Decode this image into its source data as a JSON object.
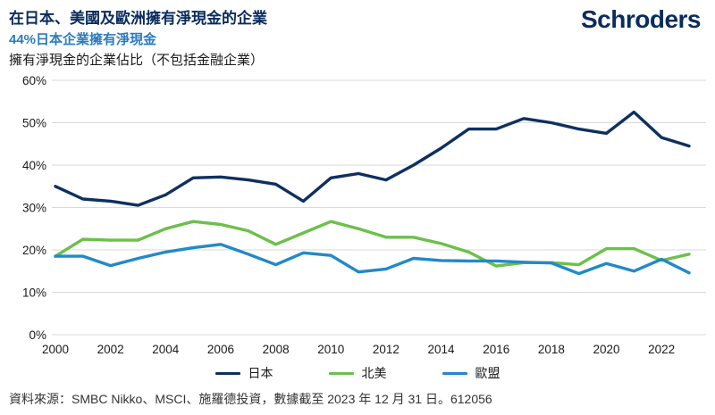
{
  "header": {
    "title": "在日本、美國及歐洲擁有淨現金的企業",
    "subtitle": "44%日本企業擁有淨現金",
    "axis_note": "擁有淨現金的企業佔比（不包括金融企業）",
    "logo": "Schroders"
  },
  "colors": {
    "brand_navy": "#0a2c5e",
    "subtitle_blue": "#2b7bbf",
    "japan_line": "#0e3060",
    "north_america_line": "#6cc04a",
    "eu_line": "#2189c9",
    "grid": "#d9d9d9",
    "axis_text": "#1a1a1a"
  },
  "chart_data": {
    "type": "line",
    "title": "擁有淨現金的企業佔比（不包括金融企業）",
    "xlabel": "",
    "ylabel": "",
    "x": [
      2000,
      2001,
      2002,
      2003,
      2004,
      2005,
      2006,
      2007,
      2008,
      2009,
      2010,
      2011,
      2012,
      2013,
      2014,
      2015,
      2016,
      2017,
      2018,
      2019,
      2020,
      2021,
      2022,
      2023
    ],
    "x_tick_labels": [
      "2000",
      "2002",
      "2004",
      "2006",
      "2008",
      "2010",
      "2012",
      "2014",
      "2016",
      "2018",
      "2020",
      "2022"
    ],
    "y_ticks": [
      "0%",
      "10%",
      "20%",
      "30%",
      "40%",
      "50%",
      "60%"
    ],
    "ylim": [
      0,
      60
    ],
    "grid": true,
    "legend_position": "bottom",
    "series": [
      {
        "name": "日本",
        "color": "#0e3060",
        "values": [
          35,
          32,
          31.5,
          30.5,
          33,
          37,
          37.2,
          36.5,
          35.5,
          31.5,
          37,
          38,
          36.5,
          40,
          44,
          48.5,
          48.5,
          51,
          50,
          48.5,
          47.5,
          52.5,
          46.5,
          44.5
        ]
      },
      {
        "name": "北美",
        "color": "#6cc04a",
        "values": [
          18.5,
          22.5,
          22.3,
          22.3,
          25,
          26.7,
          26,
          24.5,
          21.3,
          24,
          26.7,
          25,
          23,
          23,
          21.5,
          19.5,
          16.2,
          17,
          17,
          16.5,
          20.3,
          20.3,
          17.5,
          19
        ]
      },
      {
        "name": "歐盟",
        "color": "#2189c9",
        "values": [
          18.5,
          18.5,
          16.3,
          18,
          19.5,
          20.5,
          21.3,
          19,
          16.5,
          19.3,
          18.7,
          14.8,
          15.5,
          18,
          17.5,
          17.4,
          17.4,
          17.1,
          16.9,
          14.4,
          16.8,
          15,
          17.8,
          14.6
        ]
      }
    ]
  },
  "footer": {
    "source": "資料來源：SMBC Nikko、MSCI、施羅德投資，數據截至 2023 年 12 月 31 日。612056"
  }
}
